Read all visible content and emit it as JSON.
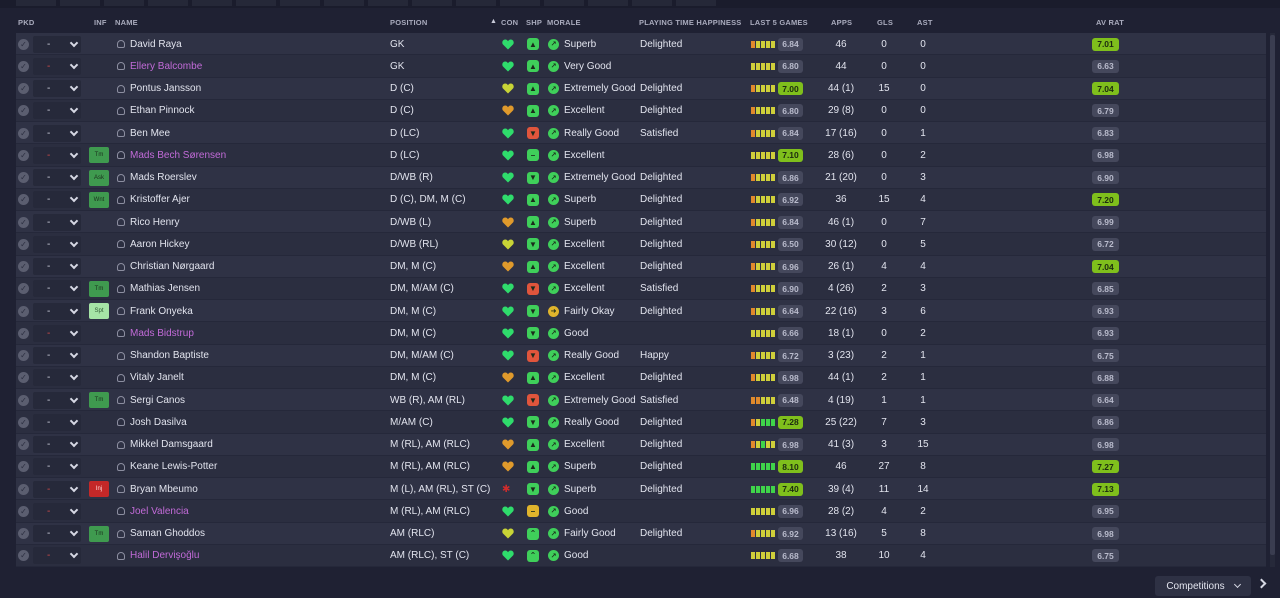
{
  "header": {
    "pkd": "PKD",
    "inf": "INF",
    "name": "NAME",
    "position": "POSITION",
    "sort_arrow": "▲",
    "con": "CON",
    "shp": "SHP",
    "morale": "MORALE",
    "playing_time": "PLAYING TIME HAPPINESS",
    "last5": "LAST 5 GAMES",
    "apps": "APPS",
    "gls": "GLS",
    "ast": "AST",
    "av_rat": "AV RAT"
  },
  "colors": {
    "bg": "#1f2133",
    "row": "#2b2e40",
    "loan_name": "#c26bd8",
    "green_rating": "#7fbf1c",
    "con_green": "#2fdc6c",
    "con_yellow": "#c8d436",
    "con_orange": "#e09a2c"
  },
  "footer": {
    "competitions_label": "Competitions"
  },
  "players": [
    {
      "pkd": "-",
      "pkd_red": false,
      "inf": "",
      "inf_style": "",
      "name": "David Raya",
      "loan": false,
      "position": "GK",
      "con": "green",
      "shp": "green-up",
      "morale": "Superb",
      "morale_icon": "up",
      "happiness": "Delighted",
      "l5": [
        "o",
        "y",
        "y",
        "y",
        "y"
      ],
      "l5_rating": "6.84",
      "l5_green": false,
      "apps": "46",
      "gls": "0",
      "ast": "0",
      "av_rat": "7.01",
      "av_green": true
    },
    {
      "pkd": "-",
      "pkd_red": true,
      "inf": "",
      "inf_style": "",
      "name": "Ellery Balcombe",
      "loan": true,
      "position": "GK",
      "con": "green",
      "shp": "green-up",
      "morale": "Very Good",
      "morale_icon": "up",
      "happiness": "",
      "l5": [
        "y",
        "y",
        "y",
        "y",
        "y"
      ],
      "l5_rating": "6.80",
      "l5_green": false,
      "apps": "44",
      "gls": "0",
      "ast": "0",
      "av_rat": "6.63",
      "av_green": false
    },
    {
      "pkd": "-",
      "pkd_red": false,
      "inf": "",
      "inf_style": "",
      "name": "Pontus Jansson",
      "loan": false,
      "position": "D (C)",
      "con": "yellow",
      "shp": "green-up",
      "morale": "Extremely Good",
      "morale_icon": "up",
      "happiness": "Delighted",
      "l5": [
        "o",
        "y",
        "y",
        "y",
        "y"
      ],
      "l5_rating": "7.00",
      "l5_green": true,
      "apps": "44 (1)",
      "gls": "15",
      "ast": "0",
      "av_rat": "7.04",
      "av_green": true
    },
    {
      "pkd": "-",
      "pkd_red": false,
      "inf": "",
      "inf_style": "",
      "name": "Ethan Pinnock",
      "loan": false,
      "position": "D (C)",
      "con": "orange",
      "shp": "green-up",
      "morale": "Excellent",
      "morale_icon": "up",
      "happiness": "Delighted",
      "l5": [
        "o",
        "y",
        "y",
        "y",
        "y"
      ],
      "l5_rating": "6.80",
      "l5_green": false,
      "apps": "29 (8)",
      "gls": "0",
      "ast": "0",
      "av_rat": "6.79",
      "av_green": false
    },
    {
      "pkd": "-",
      "pkd_red": false,
      "inf": "",
      "inf_style": "",
      "name": "Ben Mee",
      "loan": false,
      "position": "D (LC)",
      "con": "green",
      "shp": "red-down",
      "morale": "Really Good",
      "morale_icon": "up",
      "happiness": "Satisfied",
      "l5": [
        "o",
        "y",
        "y",
        "y",
        "y"
      ],
      "l5_rating": "6.84",
      "l5_green": false,
      "apps": "17 (16)",
      "gls": "0",
      "ast": "1",
      "av_rat": "6.83",
      "av_green": false
    },
    {
      "pkd": "-",
      "pkd_red": true,
      "inf": "Tm",
      "inf_style": "green",
      "name": "Mads Bech Sørensen",
      "loan": true,
      "position": "D (LC)",
      "con": "green",
      "shp": "green-flat",
      "morale": "Excellent",
      "morale_icon": "up",
      "happiness": "",
      "l5": [
        "y",
        "y",
        "y",
        "y",
        "y"
      ],
      "l5_rating": "7.10",
      "l5_green": true,
      "apps": "28 (6)",
      "gls": "0",
      "ast": "2",
      "av_rat": "6.98",
      "av_green": false
    },
    {
      "pkd": "-",
      "pkd_red": false,
      "inf": "Ask",
      "inf_style": "green",
      "name": "Mads Roerslev",
      "loan": false,
      "position": "D/WB (R)",
      "con": "green",
      "shp": "green-down",
      "morale": "Extremely Good",
      "morale_icon": "up",
      "happiness": "Delighted",
      "l5": [
        "o",
        "y",
        "y",
        "y",
        "y"
      ],
      "l5_rating": "6.86",
      "l5_green": false,
      "apps": "21 (20)",
      "gls": "0",
      "ast": "3",
      "av_rat": "6.90",
      "av_green": false
    },
    {
      "pkd": "-",
      "pkd_red": false,
      "inf": "Wnt",
      "inf_style": "green",
      "name": "Kristoffer Ajer",
      "loan": false,
      "position": "D (C), DM, M (C)",
      "con": "green",
      "shp": "green-up",
      "morale": "Superb",
      "morale_icon": "up",
      "happiness": "Delighted",
      "l5": [
        "o",
        "y",
        "y",
        "y",
        "y"
      ],
      "l5_rating": "6.92",
      "l5_green": false,
      "apps": "36",
      "gls": "15",
      "ast": "4",
      "av_rat": "7.20",
      "av_green": true
    },
    {
      "pkd": "-",
      "pkd_red": false,
      "inf": "",
      "inf_style": "",
      "name": "Rico Henry",
      "loan": false,
      "position": "D/WB (L)",
      "con": "orange",
      "shp": "green-up",
      "morale": "Superb",
      "morale_icon": "up",
      "happiness": "Delighted",
      "l5": [
        "o",
        "y",
        "y",
        "y",
        "y"
      ],
      "l5_rating": "6.84",
      "l5_green": false,
      "apps": "46 (1)",
      "gls": "0",
      "ast": "7",
      "av_rat": "6.99",
      "av_green": false
    },
    {
      "pkd": "-",
      "pkd_red": false,
      "inf": "",
      "inf_style": "",
      "name": "Aaron Hickey",
      "loan": false,
      "position": "D/WB (RL)",
      "con": "yellow",
      "shp": "green-down",
      "morale": "Excellent",
      "morale_icon": "up",
      "happiness": "Delighted",
      "l5": [
        "o",
        "y",
        "y",
        "y",
        "y"
      ],
      "l5_rating": "6.50",
      "l5_green": false,
      "apps": "30 (12)",
      "gls": "0",
      "ast": "5",
      "av_rat": "6.72",
      "av_green": false
    },
    {
      "pkd": "-",
      "pkd_red": false,
      "inf": "",
      "inf_style": "",
      "name": "Christian Nørgaard",
      "loan": false,
      "position": "DM, M (C)",
      "con": "orange",
      "shp": "green-up",
      "morale": "Excellent",
      "morale_icon": "up",
      "happiness": "Delighted",
      "l5": [
        "o",
        "y",
        "y",
        "y",
        "y"
      ],
      "l5_rating": "6.96",
      "l5_green": false,
      "apps": "26 (1)",
      "gls": "4",
      "ast": "4",
      "av_rat": "7.04",
      "av_green": true
    },
    {
      "pkd": "-",
      "pkd_red": false,
      "inf": "Tm",
      "inf_style": "green",
      "name": "Mathias Jensen",
      "loan": false,
      "position": "DM, M/AM (C)",
      "con": "green",
      "shp": "red-down",
      "morale": "Excellent",
      "morale_icon": "up",
      "happiness": "Satisfied",
      "l5": [
        "o",
        "y",
        "y",
        "y",
        "y"
      ],
      "l5_rating": "6.90",
      "l5_green": false,
      "apps": "4 (26)",
      "gls": "2",
      "ast": "3",
      "av_rat": "6.85",
      "av_green": false
    },
    {
      "pkd": "-",
      "pkd_red": false,
      "inf": "Spt",
      "inf_style": "light",
      "name": "Frank Onyeka",
      "loan": false,
      "position": "DM, M (C)",
      "con": "green",
      "shp": "green-down",
      "morale": "Fairly Okay",
      "morale_icon": "right",
      "happiness": "Delighted",
      "l5": [
        "o",
        "y",
        "y",
        "y",
        "y"
      ],
      "l5_rating": "6.64",
      "l5_green": false,
      "apps": "22 (16)",
      "gls": "3",
      "ast": "6",
      "av_rat": "6.93",
      "av_green": false
    },
    {
      "pkd": "-",
      "pkd_red": true,
      "inf": "",
      "inf_style": "",
      "name": "Mads Bidstrup",
      "loan": true,
      "position": "DM, M (C)",
      "con": "green",
      "shp": "green-down",
      "morale": "Good",
      "morale_icon": "up",
      "happiness": "",
      "l5": [
        "y",
        "y",
        "y",
        "y",
        "y"
      ],
      "l5_rating": "6.66",
      "l5_green": false,
      "apps": "18 (1)",
      "gls": "0",
      "ast": "2",
      "av_rat": "6.93",
      "av_green": false
    },
    {
      "pkd": "-",
      "pkd_red": false,
      "inf": "",
      "inf_style": "",
      "name": "Shandon Baptiste",
      "loan": false,
      "position": "DM, M/AM (C)",
      "con": "green",
      "shp": "red-down",
      "morale": "Really Good",
      "morale_icon": "up",
      "happiness": "Happy",
      "l5": [
        "o",
        "y",
        "y",
        "y",
        "y"
      ],
      "l5_rating": "6.72",
      "l5_green": false,
      "apps": "3 (23)",
      "gls": "2",
      "ast": "1",
      "av_rat": "6.75",
      "av_green": false
    },
    {
      "pkd": "-",
      "pkd_red": false,
      "inf": "",
      "inf_style": "",
      "name": "Vitaly Janelt",
      "loan": false,
      "position": "DM, M (C)",
      "con": "orange",
      "shp": "green-up",
      "morale": "Excellent",
      "morale_icon": "up",
      "happiness": "Delighted",
      "l5": [
        "o",
        "y",
        "y",
        "y",
        "y"
      ],
      "l5_rating": "6.98",
      "l5_green": false,
      "apps": "44 (1)",
      "gls": "2",
      "ast": "1",
      "av_rat": "6.88",
      "av_green": false
    },
    {
      "pkd": "-",
      "pkd_red": false,
      "inf": "Tm",
      "inf_style": "green",
      "name": "Sergi Canos",
      "loan": false,
      "position": "WB (R), AM (RL)",
      "con": "green",
      "shp": "red-down",
      "morale": "Extremely Good",
      "morale_icon": "up",
      "happiness": "Satisfied",
      "l5": [
        "o",
        "o",
        "y",
        "y",
        "y"
      ],
      "l5_rating": "6.48",
      "l5_green": false,
      "apps": "4 (19)",
      "gls": "1",
      "ast": "1",
      "av_rat": "6.64",
      "av_green": false
    },
    {
      "pkd": "-",
      "pkd_red": false,
      "inf": "",
      "inf_style": "",
      "name": "Josh Dasilva",
      "loan": false,
      "position": "M/AM (C)",
      "con": "green",
      "shp": "green-down",
      "morale": "Really Good",
      "morale_icon": "up",
      "happiness": "Delighted",
      "l5": [
        "o",
        "y",
        "g",
        "g",
        "g"
      ],
      "l5_rating": "7.28",
      "l5_green": true,
      "apps": "25 (22)",
      "gls": "7",
      "ast": "3",
      "av_rat": "6.86",
      "av_green": false
    },
    {
      "pkd": "-",
      "pkd_red": false,
      "inf": "",
      "inf_style": "",
      "name": "Mikkel Damsgaard",
      "loan": false,
      "position": "M (RL), AM (RLC)",
      "con": "orange",
      "shp": "green-up",
      "morale": "Excellent",
      "morale_icon": "up",
      "happiness": "Delighted",
      "l5": [
        "o",
        "y",
        "g",
        "y",
        "y"
      ],
      "l5_rating": "6.98",
      "l5_green": false,
      "apps": "41 (3)",
      "gls": "3",
      "ast": "15",
      "av_rat": "6.98",
      "av_green": false
    },
    {
      "pkd": "-",
      "pkd_red": false,
      "inf": "",
      "inf_style": "",
      "name": "Keane Lewis-Potter",
      "loan": false,
      "position": "M (RL), AM (RLC)",
      "con": "orange",
      "shp": "green-up",
      "morale": "Superb",
      "morale_icon": "up",
      "happiness": "Delighted",
      "l5": [
        "g",
        "g",
        "g",
        "g",
        "g"
      ],
      "l5_rating": "8.10",
      "l5_green": true,
      "apps": "46",
      "gls": "27",
      "ast": "8",
      "av_rat": "7.27",
      "av_green": true
    },
    {
      "pkd": "-",
      "pkd_red": true,
      "inf": "Inj",
      "inf_style": "red",
      "name": "Bryan Mbeumo",
      "loan": false,
      "position": "M (L), AM (RL), ST (C)",
      "con": "injured",
      "shp": "green-down",
      "morale": "Superb",
      "morale_icon": "up",
      "happiness": "Delighted",
      "l5": [
        "g",
        "g",
        "g",
        "g",
        "g"
      ],
      "l5_rating": "7.40",
      "l5_green": true,
      "apps": "39 (4)",
      "gls": "11",
      "ast": "14",
      "av_rat": "7.13",
      "av_green": true
    },
    {
      "pkd": "-",
      "pkd_red": true,
      "inf": "",
      "inf_style": "",
      "name": "Joel Valencia",
      "loan": true,
      "position": "M (RL), AM (RLC)",
      "con": "green",
      "shp": "orange-flat",
      "morale": "Good",
      "morale_icon": "up",
      "happiness": "",
      "l5": [
        "y",
        "y",
        "y",
        "y",
        "y"
      ],
      "l5_rating": "6.96",
      "l5_green": false,
      "apps": "28 (2)",
      "gls": "4",
      "ast": "2",
      "av_rat": "6.95",
      "av_green": false
    },
    {
      "pkd": "-",
      "pkd_red": false,
      "inf": "Tm",
      "inf_style": "green",
      "name": "Saman Ghoddos",
      "loan": false,
      "position": "AM (RLC)",
      "con": "yellow",
      "shp": "green-up2",
      "morale": "Fairly Good",
      "morale_icon": "up",
      "happiness": "Delighted",
      "l5": [
        "o",
        "y",
        "y",
        "y",
        "y"
      ],
      "l5_rating": "6.92",
      "l5_green": false,
      "apps": "13 (16)",
      "gls": "5",
      "ast": "8",
      "av_rat": "6.98",
      "av_green": false
    },
    {
      "pkd": "-",
      "pkd_red": true,
      "inf": "",
      "inf_style": "",
      "name": "Halil Dervişoğlu",
      "loan": true,
      "position": "AM (RLC), ST (C)",
      "con": "green",
      "shp": "green-up2",
      "morale": "Good",
      "morale_icon": "up",
      "happiness": "",
      "l5": [
        "y",
        "y",
        "y",
        "y",
        "y"
      ],
      "l5_rating": "6.68",
      "l5_green": false,
      "apps": "38",
      "gls": "10",
      "ast": "4",
      "av_rat": "6.75",
      "av_green": false
    }
  ]
}
